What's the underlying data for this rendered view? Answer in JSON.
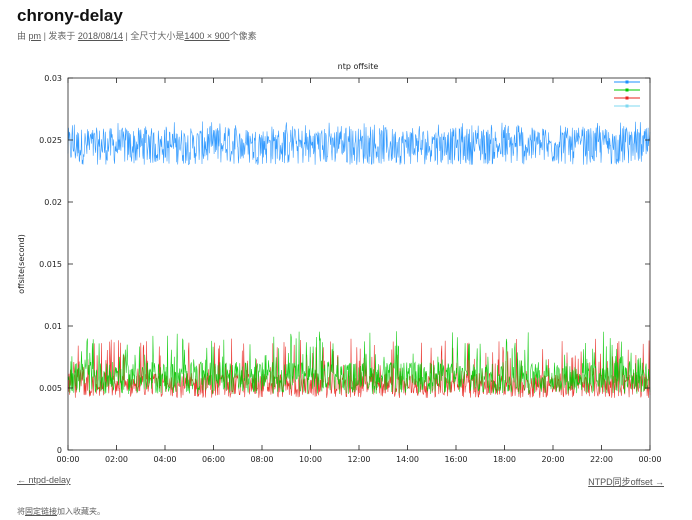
{
  "post": {
    "title": "chrony-delay",
    "by_prefix": "由",
    "author": "pm",
    "published_prefix": "| 发表于",
    "date": "2018/08/14",
    "size_prefix": "| 全尺寸大小是",
    "size": "1400 × 900",
    "size_suffix": "个像素"
  },
  "nav": {
    "prev": "← ntpd-delay",
    "next": "NTPD同步offset →"
  },
  "footer": {
    "prefix": "将",
    "link": "固定链接",
    "suffix": "加入收藏夹。"
  },
  "colors": {
    "blue": "#1e90ff",
    "green": "#00c800",
    "red": "#e8231c",
    "cyan": "#7fd8f0"
  },
  "chart_data": {
    "type": "line",
    "title": "ntp offsite",
    "ylabel": "offsite(second)",
    "xlabel": "",
    "x_ticks": [
      "00:00",
      "02:00",
      "04:00",
      "06:00",
      "08:00",
      "10:00",
      "12:00",
      "14:00",
      "16:00",
      "18:00",
      "20:00",
      "22:00",
      "00:00"
    ],
    "y_ticks": [
      "0",
      "0.005",
      "0.01",
      "0.015",
      "0.02",
      "0.025",
      "0.03"
    ],
    "ylim": [
      0,
      0.03
    ],
    "xlim": [
      "00:00",
      "24:00"
    ],
    "grid": false,
    "legend_position": "top-right",
    "series": [
      {
        "color_key": "blue",
        "marker": "star",
        "min": 0.023,
        "max": 0.0265,
        "mean": 0.0245
      },
      {
        "color_key": "green",
        "marker": "x",
        "min": 0.0045,
        "max": 0.0096,
        "mean": 0.0058
      },
      {
        "color_key": "red",
        "marker": "plus",
        "min": 0.0042,
        "max": 0.009,
        "mean": 0.0052
      },
      {
        "color_key": "cyan",
        "marker": "square",
        "min": 0.0,
        "max": 0.0,
        "mean": 0.0
      }
    ]
  }
}
